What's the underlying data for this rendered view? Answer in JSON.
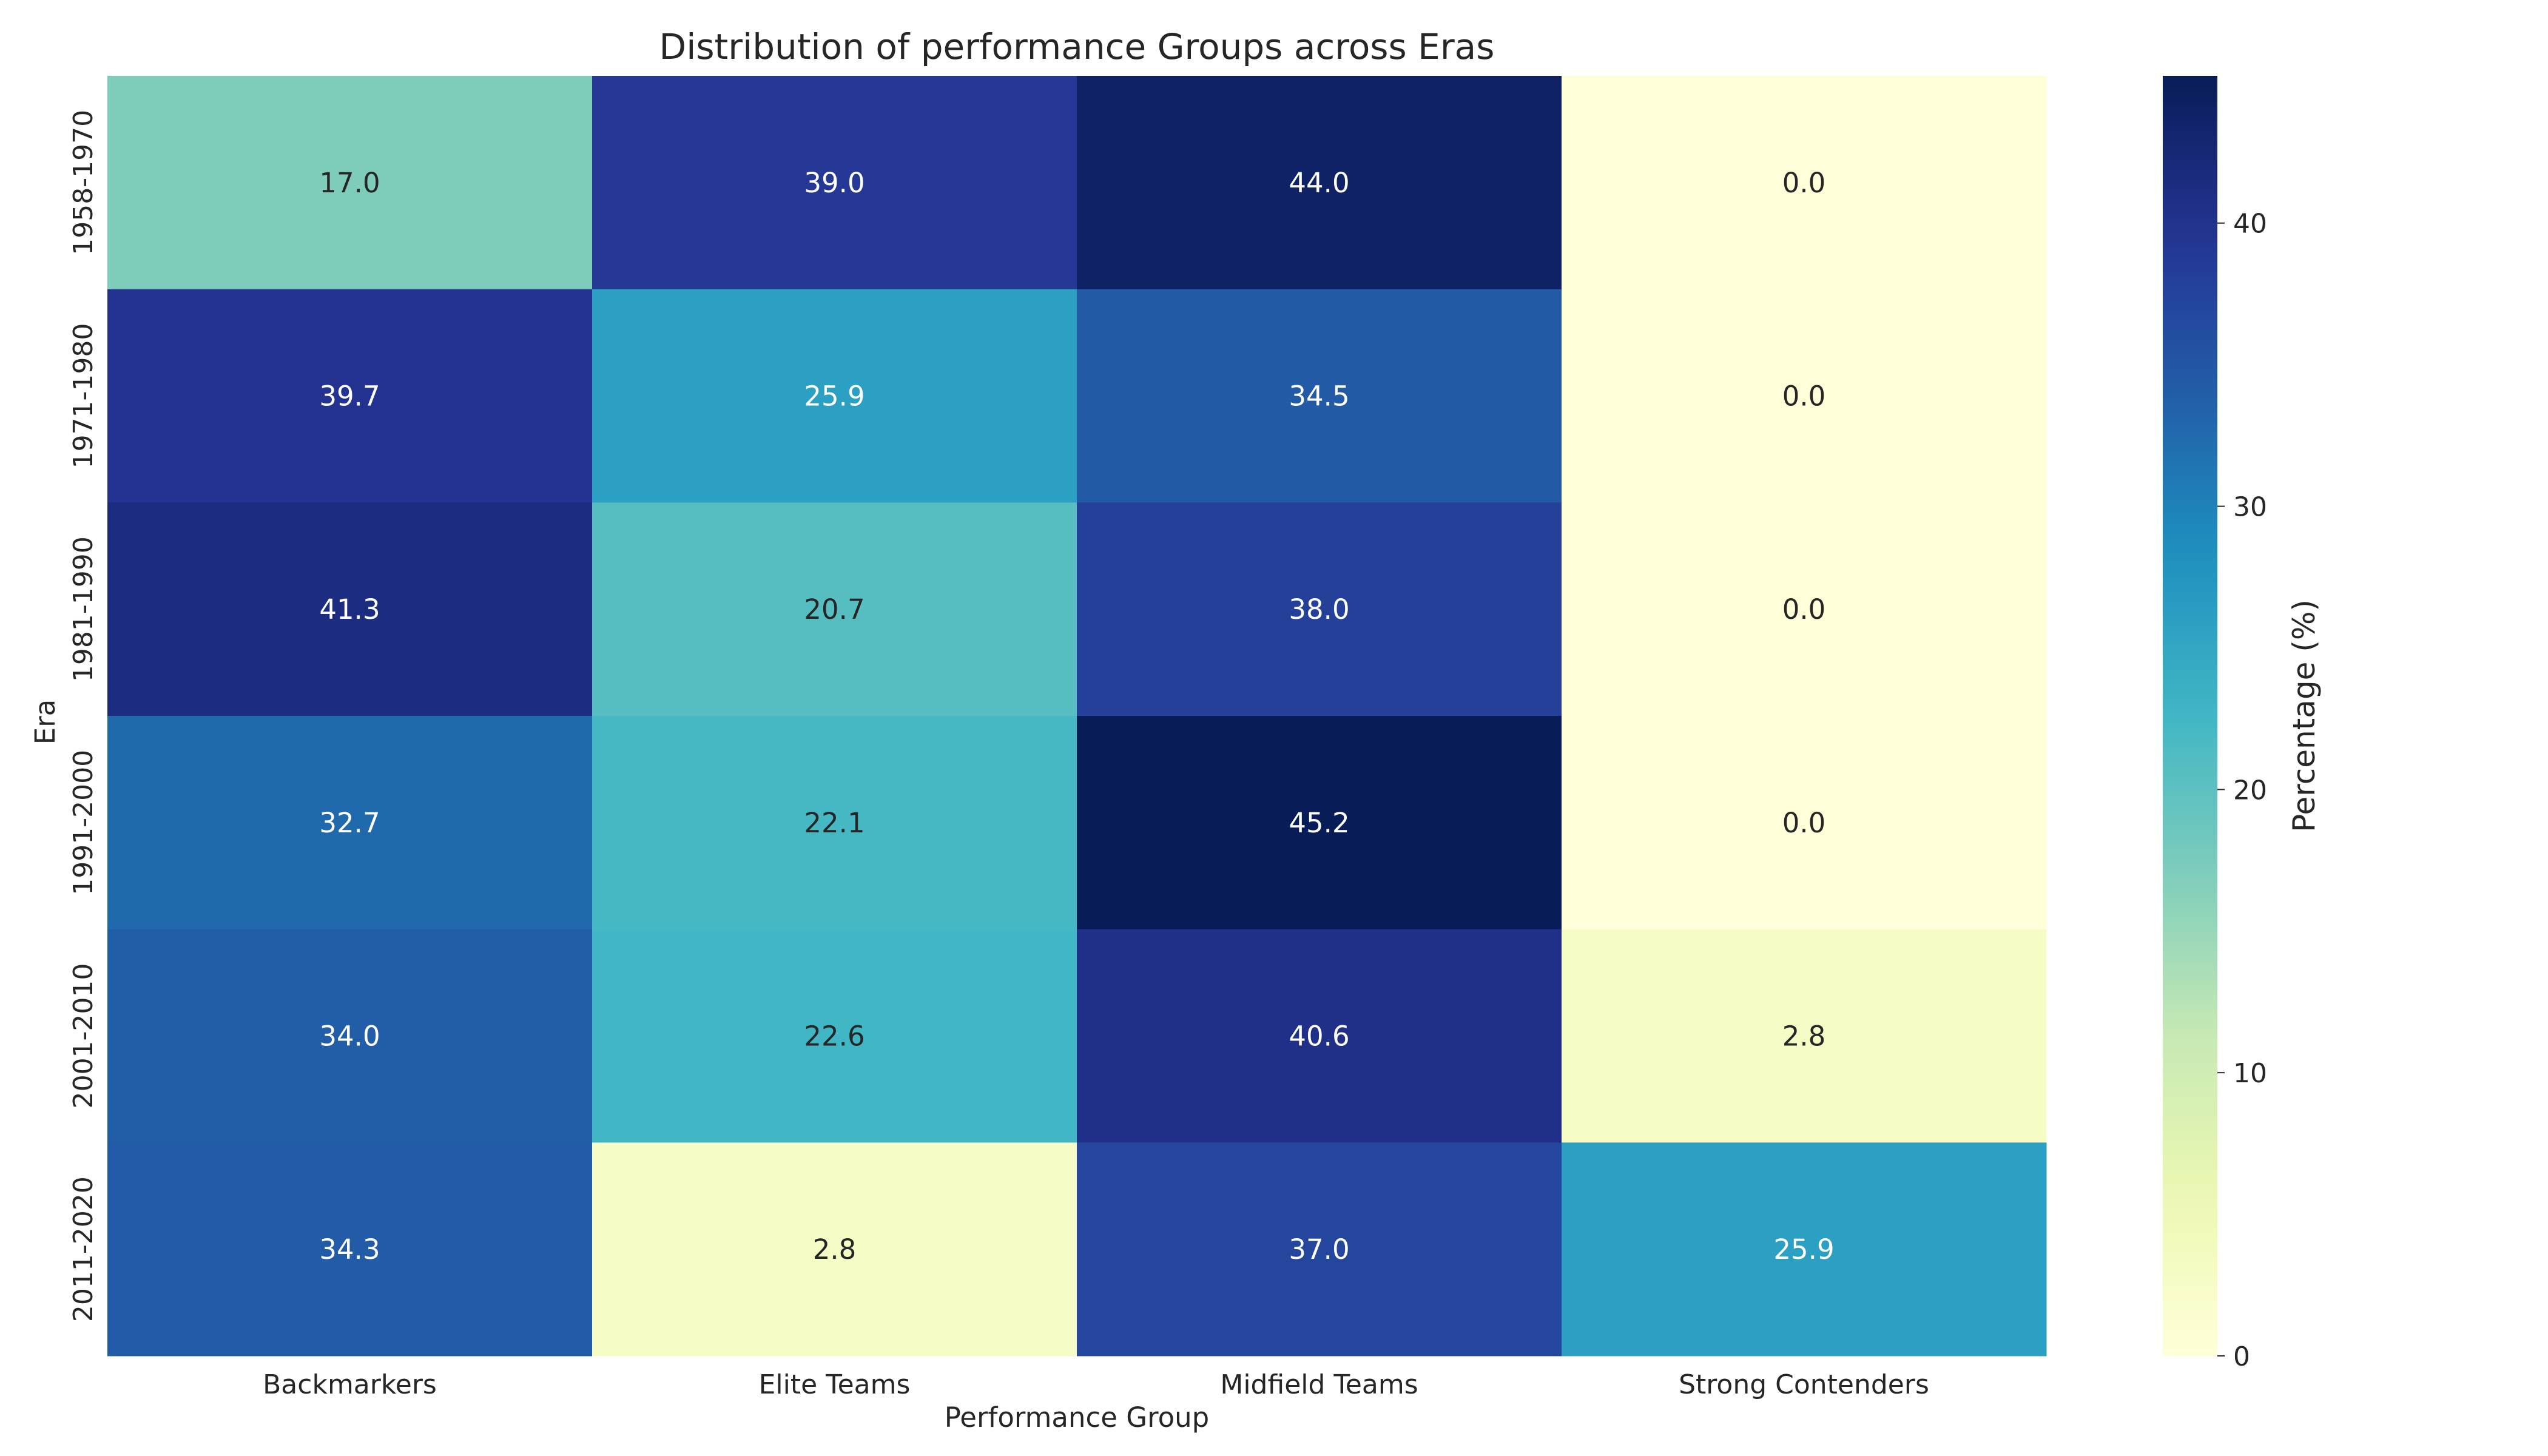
{
  "chart_data": {
    "type": "heatmap",
    "title": "Distribution of performance Groups across Eras",
    "xlabel": "Performance Group",
    "ylabel": "Era",
    "x_categories": [
      "Backmarkers",
      "Elite Teams",
      "Midfield Teams",
      "Strong Contenders"
    ],
    "y_categories": [
      "1958-1970",
      "1971-1980",
      "1981-1990",
      "1991-2000",
      "2001-2010",
      "2011-2020"
    ],
    "values": [
      [
        17.0,
        39.0,
        44.0,
        0.0
      ],
      [
        39.7,
        25.9,
        34.5,
        0.0
      ],
      [
        41.3,
        20.7,
        38.0,
        0.0
      ],
      [
        32.7,
        22.1,
        45.2,
        0.0
      ],
      [
        34.0,
        22.6,
        40.6,
        2.8
      ],
      [
        34.3,
        2.8,
        37.0,
        25.9
      ]
    ],
    "value_format": "0.0",
    "colorbar": {
      "label": "Percentage (%)",
      "min": 0,
      "max": 45.2,
      "ticks": [
        0,
        10,
        20,
        30,
        40
      ],
      "colormap": "YlGnBu"
    },
    "grid": false
  }
}
